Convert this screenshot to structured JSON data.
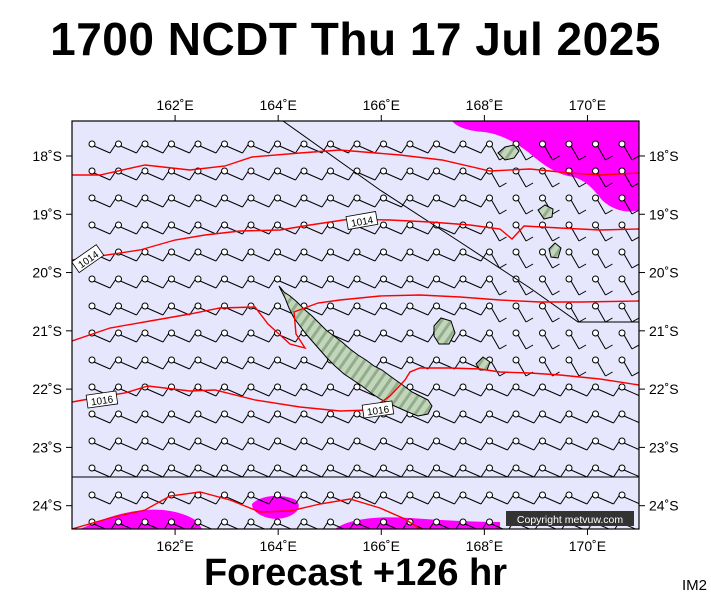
{
  "title": "1700 NCDT Thu 17 Jul 2025",
  "forecast_label": "Forecast +126 hr",
  "image_id_label": "IM2",
  "copyright": "Copyright metvuw.com",
  "map": {
    "lon_range": [
      160.0,
      171.0
    ],
    "lat_range": [
      -24.4,
      -17.4
    ],
    "lon_ticks": [
      {
        "value": 162,
        "label": "162˚E"
      },
      {
        "value": 164,
        "label": "164˚E"
      },
      {
        "value": 166,
        "label": "166˚E"
      },
      {
        "value": 168,
        "label": "168˚E"
      },
      {
        "value": 170,
        "label": "170˚E"
      }
    ],
    "lat_ticks": [
      {
        "value": -18,
        "label": "18˚S"
      },
      {
        "value": -19,
        "label": "19˚S"
      },
      {
        "value": -20,
        "label": "20˚S"
      },
      {
        "value": -21,
        "label": "21˚S"
      },
      {
        "value": -22,
        "label": "22˚S"
      },
      {
        "value": -23,
        "label": "23˚S"
      },
      {
        "value": -24,
        "label": "24˚S"
      }
    ],
    "isobar_labels": [
      "1014",
      "1014",
      "1016",
      "1016"
    ],
    "colors": {
      "sea": "#e6e6fc",
      "rain": "#ff00ff",
      "isobar": "#ff0000",
      "land": "#b8cfb0",
      "land_stripe": "#8faa88"
    }
  }
}
